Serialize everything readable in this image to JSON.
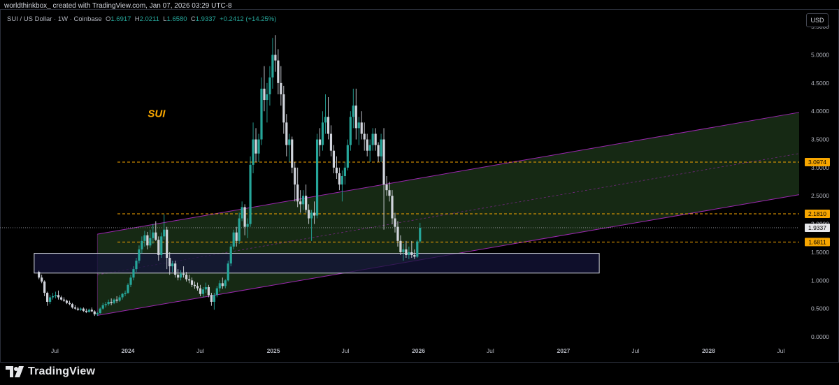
{
  "header": {
    "credit": "worldthinkbox_ created with TradingView.com, Jan 07, 2026 03:29 UTC-8"
  },
  "legend": {
    "symbol": "SUI / US Dollar · 1W · Coinbase",
    "open_label": "O",
    "open": "1.6917",
    "high_label": "H",
    "high": "2.0211",
    "low_label": "L",
    "low": "1.6580",
    "close_label": "C",
    "close": "1.9337",
    "change": "+0.2412 (+14.25%)"
  },
  "currency": "USD",
  "footer": {
    "brand": "TradingView"
  },
  "colors": {
    "up": "#26a69a",
    "down": "#d1d4dc",
    "wick": "#d1d4dc",
    "level": "#f7a600",
    "channel_line": "#9c27b0",
    "channel_fill": "#1c3319",
    "zone_fill": "#14143a",
    "zone_border": "#d1d4dc",
    "annotation": "#f7a600"
  },
  "chart_data": {
    "type": "candlestick",
    "title": "SUI / US Dollar · 1W · Coinbase",
    "ylim": [
      0,
      5.7
    ],
    "y_ticks": [
      "0.0000",
      "0.5000",
      "1.0000",
      "1.5000",
      "2.0000",
      "2.5000",
      "3.0000",
      "3.5000",
      "4.0000",
      "4.5000",
      "5.0000",
      "5.5000"
    ],
    "x_ticks": [
      {
        "label": "Jul",
        "date": "2023-07-01"
      },
      {
        "label": "2024",
        "date": "2024-01-01"
      },
      {
        "label": "Jul",
        "date": "2024-07-01"
      },
      {
        "label": "2025",
        "date": "2025-01-01"
      },
      {
        "label": "Jul",
        "date": "2025-07-01"
      },
      {
        "label": "2026",
        "date": "2026-01-01"
      },
      {
        "label": "Jul",
        "date": "2026-07-01"
      },
      {
        "label": "2027",
        "date": "2027-01-01"
      },
      {
        "label": "Jul",
        "date": "2027-07-01"
      },
      {
        "label": "2028",
        "date": "2028-01-01"
      },
      {
        "label": "Jul",
        "date": "2028-07-01"
      }
    ],
    "x_range": [
      "2023-02-13",
      "2028-08-16"
    ],
    "annotation": {
      "text": "SUI",
      "date": "2024-02-20",
      "price": 3.9
    },
    "levels": [
      {
        "price": 3.0974,
        "label": "3.0974"
      },
      {
        "price": 2.181,
        "label": "2.1810"
      },
      {
        "price": 1.6811,
        "label": "1.6811"
      }
    ],
    "last_price": {
      "price": 1.9337,
      "label": "1.9337"
    },
    "zone": {
      "start": "2023-05-10",
      "end": "2027-04-01",
      "top": 1.48,
      "bottom": 1.13
    },
    "channel": {
      "start": "2023-10-16",
      "end": "2028-08-16",
      "upper": [
        1.82,
        3.98
      ],
      "lower": [
        0.38,
        2.52
      ],
      "mid": [
        1.1,
        3.25
      ]
    },
    "candles": [
      [
        "2023-05-22",
        1.15,
        1.17,
        1.02,
        1.05
      ],
      [
        "2023-05-29",
        1.05,
        1.1,
        0.95,
        0.98
      ],
      [
        "2023-06-05",
        0.98,
        1.0,
        0.72,
        0.78
      ],
      [
        "2023-06-12",
        0.78,
        0.8,
        0.55,
        0.62
      ],
      [
        "2023-06-19",
        0.62,
        0.74,
        0.58,
        0.7
      ],
      [
        "2023-06-26",
        0.7,
        0.78,
        0.66,
        0.72
      ],
      [
        "2023-07-03",
        0.72,
        0.8,
        0.68,
        0.74
      ],
      [
        "2023-07-10",
        0.74,
        0.82,
        0.66,
        0.7
      ],
      [
        "2023-07-17",
        0.7,
        0.73,
        0.64,
        0.66
      ],
      [
        "2023-07-24",
        0.66,
        0.7,
        0.62,
        0.64
      ],
      [
        "2023-07-31",
        0.64,
        0.66,
        0.58,
        0.6
      ],
      [
        "2023-08-07",
        0.6,
        0.64,
        0.56,
        0.58
      ],
      [
        "2023-08-14",
        0.58,
        0.6,
        0.5,
        0.52
      ],
      [
        "2023-08-21",
        0.52,
        0.56,
        0.48,
        0.5
      ],
      [
        "2023-08-28",
        0.5,
        0.53,
        0.46,
        0.48
      ],
      [
        "2023-09-04",
        0.48,
        0.52,
        0.46,
        0.5
      ],
      [
        "2023-09-11",
        0.5,
        0.52,
        0.44,
        0.46
      ],
      [
        "2023-09-18",
        0.46,
        0.5,
        0.42,
        0.44
      ],
      [
        "2023-09-25",
        0.44,
        0.5,
        0.43,
        0.48
      ],
      [
        "2023-10-02",
        0.48,
        0.52,
        0.44,
        0.45
      ],
      [
        "2023-10-09",
        0.45,
        0.47,
        0.37,
        0.4
      ],
      [
        "2023-10-16",
        0.4,
        0.44,
        0.37,
        0.42
      ],
      [
        "2023-10-23",
        0.42,
        0.52,
        0.41,
        0.5
      ],
      [
        "2023-10-30",
        0.5,
        0.6,
        0.48,
        0.56
      ],
      [
        "2023-11-06",
        0.56,
        0.62,
        0.52,
        0.58
      ],
      [
        "2023-11-13",
        0.58,
        0.66,
        0.55,
        0.62
      ],
      [
        "2023-11-20",
        0.62,
        0.68,
        0.56,
        0.6
      ],
      [
        "2023-11-27",
        0.6,
        0.68,
        0.58,
        0.66
      ],
      [
        "2023-12-04",
        0.66,
        0.72,
        0.6,
        0.64
      ],
      [
        "2023-12-11",
        0.64,
        0.74,
        0.62,
        0.7
      ],
      [
        "2023-12-18",
        0.7,
        0.78,
        0.66,
        0.76
      ],
      [
        "2023-12-25",
        0.76,
        0.82,
        0.72,
        0.78
      ],
      [
        "2024-01-01",
        0.78,
        0.95,
        0.76,
        0.92
      ],
      [
        "2024-01-08",
        0.92,
        1.1,
        0.88,
        1.05
      ],
      [
        "2024-01-15",
        1.05,
        1.25,
        1.0,
        1.2
      ],
      [
        "2024-01-22",
        1.2,
        1.4,
        1.15,
        1.35
      ],
      [
        "2024-01-29",
        1.35,
        1.62,
        1.3,
        1.55
      ],
      [
        "2024-02-05",
        1.55,
        1.78,
        1.48,
        1.7
      ],
      [
        "2024-02-12",
        1.7,
        1.88,
        1.6,
        1.8
      ],
      [
        "2024-02-19",
        1.8,
        1.86,
        1.55,
        1.62
      ],
      [
        "2024-02-26",
        1.62,
        1.9,
        1.58,
        1.75
      ],
      [
        "2024-03-04",
        1.75,
        2.0,
        1.65,
        1.85
      ],
      [
        "2024-03-11",
        1.85,
        2.05,
        1.7,
        1.72
      ],
      [
        "2024-03-18",
        1.72,
        1.78,
        1.35,
        1.45
      ],
      [
        "2024-03-25",
        1.45,
        1.85,
        1.4,
        1.78
      ],
      [
        "2024-04-01",
        1.78,
        2.17,
        1.72,
        1.9
      ],
      [
        "2024-04-08",
        1.9,
        1.95,
        1.2,
        1.4
      ],
      [
        "2024-04-15",
        1.4,
        1.5,
        1.1,
        1.25
      ],
      [
        "2024-04-22",
        1.25,
        1.35,
        1.15,
        1.3
      ],
      [
        "2024-04-29",
        1.3,
        1.35,
        1.05,
        1.1
      ],
      [
        "2024-05-06",
        1.1,
        1.2,
        1.0,
        1.05
      ],
      [
        "2024-05-13",
        1.05,
        1.18,
        1.0,
        1.12
      ],
      [
        "2024-05-20",
        1.12,
        1.25,
        1.05,
        1.1
      ],
      [
        "2024-05-27",
        1.1,
        1.15,
        0.98,
        1.02
      ],
      [
        "2024-06-03",
        1.02,
        1.1,
        0.95,
        1.0
      ],
      [
        "2024-06-10",
        1.0,
        1.05,
        0.88,
        0.92
      ],
      [
        "2024-06-17",
        0.92,
        0.98,
        0.85,
        0.9
      ],
      [
        "2024-06-24",
        0.9,
        0.96,
        0.82,
        0.86
      ],
      [
        "2024-07-01",
        0.86,
        0.92,
        0.72,
        0.76
      ],
      [
        "2024-07-08",
        0.76,
        0.88,
        0.7,
        0.84
      ],
      [
        "2024-07-15",
        0.84,
        0.96,
        0.78,
        0.88
      ],
      [
        "2024-07-22",
        0.88,
        0.92,
        0.7,
        0.74
      ],
      [
        "2024-07-29",
        0.74,
        0.78,
        0.55,
        0.62
      ],
      [
        "2024-08-05",
        0.62,
        0.78,
        0.48,
        0.74
      ],
      [
        "2024-08-12",
        0.74,
        0.9,
        0.7,
        0.86
      ],
      [
        "2024-08-19",
        0.86,
        1.0,
        0.8,
        0.95
      ],
      [
        "2024-08-26",
        0.95,
        1.05,
        0.85,
        0.9
      ],
      [
        "2024-09-02",
        0.9,
        1.02,
        0.86,
        1.0
      ],
      [
        "2024-09-09",
        1.0,
        1.35,
        0.98,
        1.3
      ],
      [
        "2024-09-16",
        1.3,
        1.65,
        1.25,
        1.6
      ],
      [
        "2024-09-23",
        1.6,
        1.9,
        1.55,
        1.85
      ],
      [
        "2024-09-30",
        1.85,
        1.95,
        1.6,
        1.7
      ],
      [
        "2024-10-07",
        1.7,
        2.2,
        1.65,
        2.1
      ],
      [
        "2024-10-14",
        2.1,
        2.4,
        2.05,
        2.3
      ],
      [
        "2024-10-21",
        2.3,
        2.35,
        1.8,
        1.95
      ],
      [
        "2024-10-28",
        1.95,
        2.1,
        1.75,
        2.0
      ],
      [
        "2024-11-04",
        2.0,
        3.2,
        1.95,
        3.05
      ],
      [
        "2024-11-11",
        3.05,
        3.8,
        2.9,
        3.5
      ],
      [
        "2024-11-18",
        3.5,
        3.7,
        3.1,
        3.25
      ],
      [
        "2024-11-25",
        3.25,
        3.6,
        3.1,
        3.5
      ],
      [
        "2024-12-02",
        3.5,
        4.6,
        3.4,
        4.4
      ],
      [
        "2024-12-09",
        4.4,
        4.8,
        4.0,
        4.2
      ],
      [
        "2024-12-16",
        4.2,
        4.5,
        3.8,
        4.3
      ],
      [
        "2024-12-23",
        4.3,
        4.8,
        4.1,
        4.6
      ],
      [
        "2024-12-30",
        4.6,
        5.3,
        4.4,
        5.0
      ],
      [
        "2025-01-06",
        5.0,
        5.35,
        4.7,
        4.9
      ],
      [
        "2025-01-13",
        4.9,
        5.1,
        4.3,
        4.5
      ],
      [
        "2025-01-20",
        4.5,
        4.8,
        4.1,
        4.3
      ],
      [
        "2025-01-27",
        4.3,
        4.45,
        3.6,
        3.8
      ],
      [
        "2025-02-03",
        3.8,
        3.95,
        3.2,
        3.4
      ],
      [
        "2025-02-10",
        3.4,
        3.6,
        3.1,
        3.5
      ],
      [
        "2025-02-17",
        3.5,
        3.55,
        2.9,
        3.0
      ],
      [
        "2025-02-24",
        3.0,
        3.1,
        2.4,
        2.7
      ],
      [
        "2025-03-03",
        2.7,
        3.0,
        2.3,
        2.4
      ],
      [
        "2025-03-10",
        2.4,
        2.6,
        2.2,
        2.35
      ],
      [
        "2025-03-17",
        2.35,
        2.6,
        2.25,
        2.5
      ],
      [
        "2025-03-24",
        2.5,
        2.7,
        2.2,
        2.25
      ],
      [
        "2025-03-31",
        2.25,
        2.35,
        2.0,
        2.1
      ],
      [
        "2025-04-07",
        2.1,
        2.25,
        1.7,
        2.2
      ],
      [
        "2025-04-14",
        2.2,
        2.4,
        2.0,
        2.15
      ],
      [
        "2025-04-21",
        2.15,
        3.6,
        2.1,
        3.5
      ],
      [
        "2025-04-28",
        3.5,
        3.7,
        3.2,
        3.4
      ],
      [
        "2025-05-05",
        3.4,
        4.0,
        3.3,
        3.8
      ],
      [
        "2025-05-12",
        3.8,
        4.3,
        3.6,
        3.9
      ],
      [
        "2025-05-19",
        3.9,
        4.25,
        3.5,
        3.6
      ],
      [
        "2025-05-26",
        3.6,
        3.75,
        3.2,
        3.3
      ],
      [
        "2025-06-02",
        3.3,
        3.4,
        2.9,
        3.0
      ],
      [
        "2025-06-09",
        3.0,
        3.2,
        2.8,
        2.9
      ],
      [
        "2025-06-16",
        2.9,
        3.0,
        2.6,
        2.7
      ],
      [
        "2025-06-23",
        2.7,
        2.95,
        2.4,
        2.85
      ],
      [
        "2025-06-30",
        2.85,
        3.1,
        2.7,
        3.0
      ],
      [
        "2025-07-07",
        3.0,
        3.5,
        2.95,
        3.4
      ],
      [
        "2025-07-14",
        3.4,
        4.0,
        3.3,
        3.9
      ],
      [
        "2025-07-21",
        3.9,
        4.4,
        3.7,
        4.1
      ],
      [
        "2025-07-28",
        4.1,
        4.4,
        3.5,
        3.7
      ],
      [
        "2025-08-04",
        3.7,
        3.9,
        3.4,
        3.8
      ],
      [
        "2025-08-11",
        3.8,
        4.0,
        3.5,
        3.6
      ],
      [
        "2025-08-18",
        3.6,
        3.8,
        3.3,
        3.5
      ],
      [
        "2025-08-25",
        3.5,
        3.6,
        3.2,
        3.3
      ],
      [
        "2025-09-01",
        3.3,
        3.5,
        3.1,
        3.4
      ],
      [
        "2025-09-08",
        3.4,
        3.7,
        3.3,
        3.6
      ],
      [
        "2025-09-15",
        3.6,
        3.7,
        3.3,
        3.4
      ],
      [
        "2025-09-22",
        3.4,
        3.45,
        3.1,
        3.2
      ],
      [
        "2025-09-29",
        3.2,
        3.6,
        3.1,
        3.5
      ],
      [
        "2025-10-06",
        3.5,
        3.7,
        1.9,
        2.7
      ],
      [
        "2025-10-13",
        2.7,
        2.85,
        2.5,
        2.6
      ],
      [
        "2025-10-20",
        2.6,
        2.75,
        2.4,
        2.5
      ],
      [
        "2025-10-27",
        2.5,
        2.6,
        2.0,
        2.1
      ],
      [
        "2025-11-03",
        2.1,
        2.2,
        1.85,
        1.95
      ],
      [
        "2025-11-10",
        1.95,
        2.05,
        1.6,
        1.7
      ],
      [
        "2025-11-17",
        1.7,
        1.8,
        1.45,
        1.5
      ],
      [
        "2025-11-24",
        1.5,
        1.65,
        1.35,
        1.55
      ],
      [
        "2025-12-01",
        1.55,
        1.7,
        1.4,
        1.45
      ],
      [
        "2025-12-08",
        1.45,
        1.6,
        1.38,
        1.5
      ],
      [
        "2025-12-15",
        1.5,
        1.7,
        1.4,
        1.45
      ],
      [
        "2025-12-22",
        1.45,
        1.55,
        1.38,
        1.42
      ],
      [
        "2025-12-29",
        1.42,
        1.72,
        1.4,
        1.69
      ],
      [
        "2026-01-05",
        1.6917,
        2.0211,
        1.658,
        1.9337
      ]
    ]
  }
}
